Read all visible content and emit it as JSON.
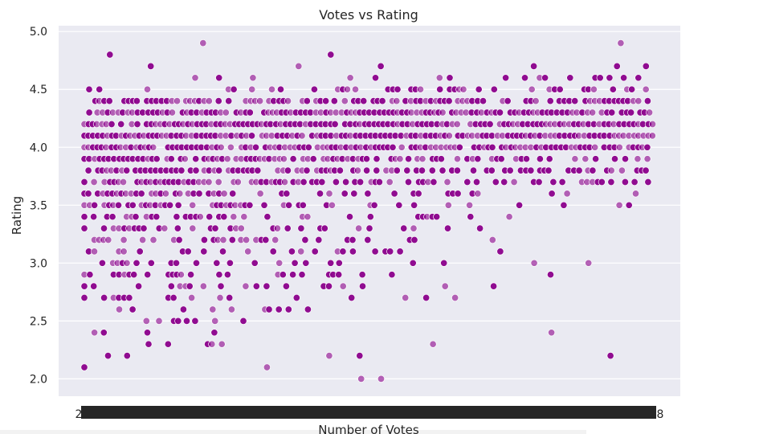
{
  "chart_data": {
    "type": "scatter",
    "title": "Votes vs Rating",
    "xlabel": "Number of Votes",
    "ylabel": "Rating",
    "ylim": [
      1.85,
      5.05
    ],
    "yticks": [
      2.0,
      2.5,
      3.0,
      3.5,
      4.0,
      4.5,
      5.0
    ],
    "ytick_labels": [
      "2.0",
      "2.5",
      "3.0",
      "3.5",
      "4.0",
      "4.5",
      "5.0"
    ],
    "x_axis_note": "categorical axis; tick labels overlap into an unreadable dark band",
    "x_first_tick_fragment": "2",
    "x_last_tick_fragment": "8",
    "grid": true,
    "background": "#eaeaf2",
    "point_color": "#8b008b",
    "point_edge": "#ffffff",
    "rating_grid": [
      2.0,
      2.1,
      2.2,
      2.3,
      2.4,
      2.5,
      2.6,
      2.7,
      2.8,
      2.9,
      3.0,
      3.1,
      3.2,
      3.3,
      3.4,
      3.5,
      3.6,
      3.7,
      3.8,
      3.9,
      4.0,
      4.1,
      4.2,
      4.3,
      4.4,
      4.5,
      4.6,
      4.7,
      4.8,
      4.9
    ],
    "series": [
      {
        "values_description": "ratings of individual restaurants; many points per vote-count category",
        "density_profile_by_rating": {
          "2.0": 0.02,
          "2.1": 0.03,
          "2.2": 0.05,
          "2.3": 0.07,
          "2.4": 0.1,
          "2.5": 0.15,
          "2.6": 0.22,
          "2.7": 0.28,
          "2.8": 0.33,
          "2.9": 0.4,
          "3.0": 0.45,
          "3.1": 0.5,
          "3.2": 0.55,
          "3.3": 0.6,
          "3.4": 0.64,
          "3.5": 0.7,
          "3.6": 0.74,
          "3.7": 0.78,
          "3.8": 0.85,
          "3.9": 0.9,
          "4.0": 0.95,
          "4.1": 0.97,
          "4.2": 0.95,
          "4.3": 0.88,
          "4.4": 0.7,
          "4.5": 0.35,
          "4.6": 0.15,
          "4.7": 0.07,
          "4.8": 0.03,
          "4.9": 0.02
        }
      }
    ]
  }
}
